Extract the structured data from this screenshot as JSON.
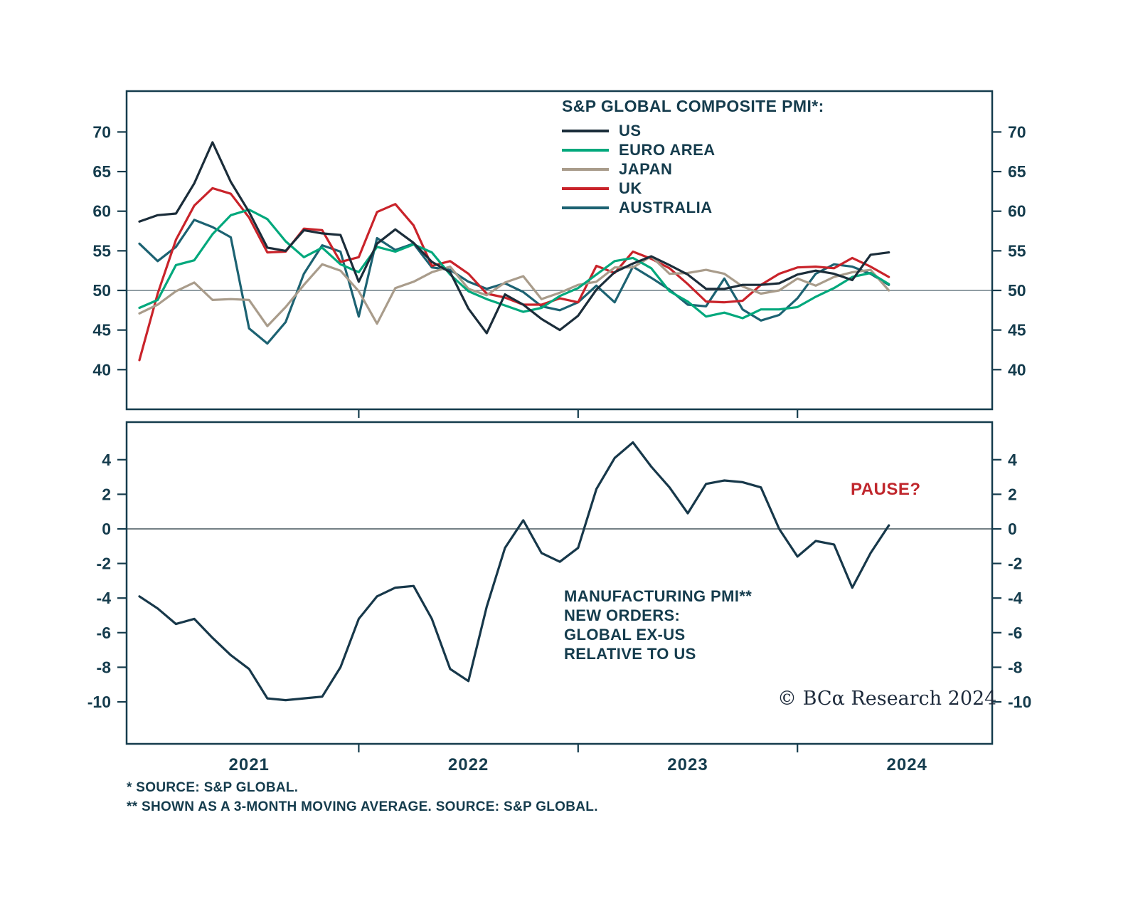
{
  "colors": {
    "frame": "#153c4d",
    "text": "#153c4d",
    "baseline_top": "#6d7f85",
    "baseline_bottom": "#46575d",
    "copyright": "#1e2b3c",
    "pause_red": "#c0272d"
  },
  "x_axis": {
    "year_labels": [
      "2021",
      "2022",
      "2023",
      "2024"
    ]
  },
  "chart_data": {
    "months": [
      "2021-01",
      "2021-02",
      "2021-03",
      "2021-04",
      "2021-05",
      "2021-06",
      "2021-07",
      "2021-08",
      "2021-09",
      "2021-10",
      "2021-11",
      "2021-12",
      "2022-01",
      "2022-02",
      "2022-03",
      "2022-04",
      "2022-05",
      "2022-06",
      "2022-07",
      "2022-08",
      "2022-09",
      "2022-10",
      "2022-11",
      "2022-12",
      "2023-01",
      "2023-02",
      "2023-03",
      "2023-04",
      "2023-05",
      "2023-06",
      "2023-07",
      "2023-08",
      "2023-09",
      "2023-10",
      "2023-11",
      "2023-12",
      "2024-01",
      "2024-02",
      "2024-03",
      "2024-04",
      "2024-05",
      "2024-06"
    ],
    "panels": [
      {
        "type": "line",
        "title": "S&P GLOBAL COMPOSITE PMI*:",
        "yticks": [
          40,
          45,
          50,
          55,
          60,
          65,
          70
        ],
        "ylim": [
          35,
          75
        ],
        "baseline": 50,
        "grid": false,
        "legend_position": "top-center",
        "series": [
          {
            "name": "US",
            "color": "#1b2d3a",
            "values": [
              58.7,
              59.5,
              59.7,
              63.5,
              68.7,
              63.7,
              59.9,
              55.4,
              55.0,
              57.6,
              57.2,
              57.0,
              51.1,
              55.9,
              57.7,
              56.0,
              53.6,
              52.3,
              47.7,
              44.6,
              49.5,
              48.2,
              46.4,
              45.0,
              46.8,
              50.1,
              52.3,
              53.4,
              54.3,
              53.2,
              52.0,
              50.2,
              50.2,
              50.7,
              50.7,
              50.9,
              52.0,
              52.5,
              52.1,
              51.3,
              54.5,
              54.8
            ]
          },
          {
            "name": "EURO AREA",
            "color": "#00a87c",
            "values": [
              47.8,
              48.8,
              53.2,
              53.8,
              57.1,
              59.5,
              60.2,
              59.0,
              56.2,
              54.2,
              55.4,
              53.3,
              52.3,
              55.5,
              54.9,
              55.8,
              54.8,
              52.0,
              49.9,
              48.9,
              48.1,
              47.3,
              47.8,
              49.3,
              50.3,
              52.0,
              53.7,
              54.1,
              52.8,
              49.9,
              48.6,
              46.7,
              47.2,
              46.5,
              47.6,
              47.6,
              47.9,
              49.2,
              50.3,
              51.7,
              52.2,
              50.8
            ]
          },
          {
            "name": "JAPAN",
            "color": "#a99c8b",
            "values": [
              47.1,
              48.2,
              49.9,
              51.0,
              48.8,
              48.9,
              48.8,
              45.5,
              47.9,
              50.7,
              53.3,
              52.5,
              49.9,
              45.8,
              50.3,
              51.1,
              52.3,
              53.0,
              50.2,
              49.4,
              51.0,
              51.8,
              48.9,
              49.7,
              50.7,
              51.1,
              52.9,
              52.9,
              54.3,
              52.1,
              52.2,
              52.6,
              52.1,
              50.5,
              49.6,
              50.0,
              51.5,
              50.6,
              51.7,
              52.3,
              52.6,
              50.0
            ]
          },
          {
            "name": "UK",
            "color": "#c9232a",
            "values": [
              41.2,
              49.6,
              56.4,
              60.7,
              62.9,
              62.2,
              59.2,
              54.8,
              54.9,
              57.8,
              57.6,
              53.6,
              54.2,
              59.9,
              60.9,
              58.2,
              53.1,
              53.7,
              52.1,
              49.6,
              49.1,
              48.2,
              48.2,
              49.0,
              48.5,
              53.1,
              52.2,
              54.9,
              54.0,
              52.8,
              50.8,
              48.6,
              48.5,
              48.7,
              50.7,
              52.1,
              52.9,
              53.0,
              52.8,
              54.1,
              53.0,
              51.7
            ]
          },
          {
            "name": "AUSTRALIA",
            "color": "#1c6272",
            "values": [
              55.9,
              53.7,
              55.5,
              58.9,
              58.0,
              56.7,
              45.2,
              43.3,
              46.0,
              52.1,
              55.7,
              54.9,
              46.7,
              56.6,
              55.1,
              55.9,
              52.9,
              52.6,
              51.1,
              50.2,
              50.9,
              49.8,
              48.0,
              47.5,
              48.5,
              50.6,
              48.5,
              53.0,
              51.6,
              50.1,
              48.2,
              48.0,
              51.5,
              47.6,
              46.2,
              46.9,
              49.0,
              52.1,
              53.3,
              53.0,
              52.1,
              50.7
            ]
          }
        ]
      },
      {
        "type": "line",
        "label_lines": [
          "MANUFACTURING PMI**",
          "NEW ORDERS:",
          "GLOBAL EX-US",
          "RELATIVE TO US"
        ],
        "annotation": {
          "text": "PAUSE?",
          "color": "#c0272d"
        },
        "yticks": [
          -10,
          -8,
          -6,
          -4,
          -2,
          0,
          2,
          4
        ],
        "ylim": [
          -12,
          6.5
        ],
        "baseline": 0,
        "grid": false,
        "series": [
          {
            "name": "MANUFACTURING PMI NEW ORDERS: GLOBAL EX-US RELATIVE TO US (3-MONTH MA)",
            "color": "#17384a",
            "values": [
              -3.9,
              -4.6,
              -5.5,
              -5.2,
              -6.3,
              -7.3,
              -8.1,
              -9.8,
              -9.9,
              -9.8,
              -9.7,
              -8.0,
              -5.2,
              -3.9,
              -3.4,
              -3.3,
              -5.2,
              -8.1,
              -8.8,
              -4.5,
              -1.1,
              0.5,
              -1.4,
              -1.9,
              -1.1,
              2.3,
              4.1,
              5.0,
              3.6,
              2.4,
              0.9,
              2.6,
              2.8,
              2.7,
              2.4,
              0.0,
              -1.6,
              -0.7,
              -0.9,
              -3.4,
              -1.4,
              0.2
            ]
          }
        ]
      }
    ]
  },
  "footer": {
    "footnote1": "* SOURCE: S&P GLOBAL.",
    "footnote2": "** SHOWN AS A 3-MONTH MOVING AVERAGE. SOURCE: S&P GLOBAL.",
    "copyright": "© BCα Research 2024"
  }
}
